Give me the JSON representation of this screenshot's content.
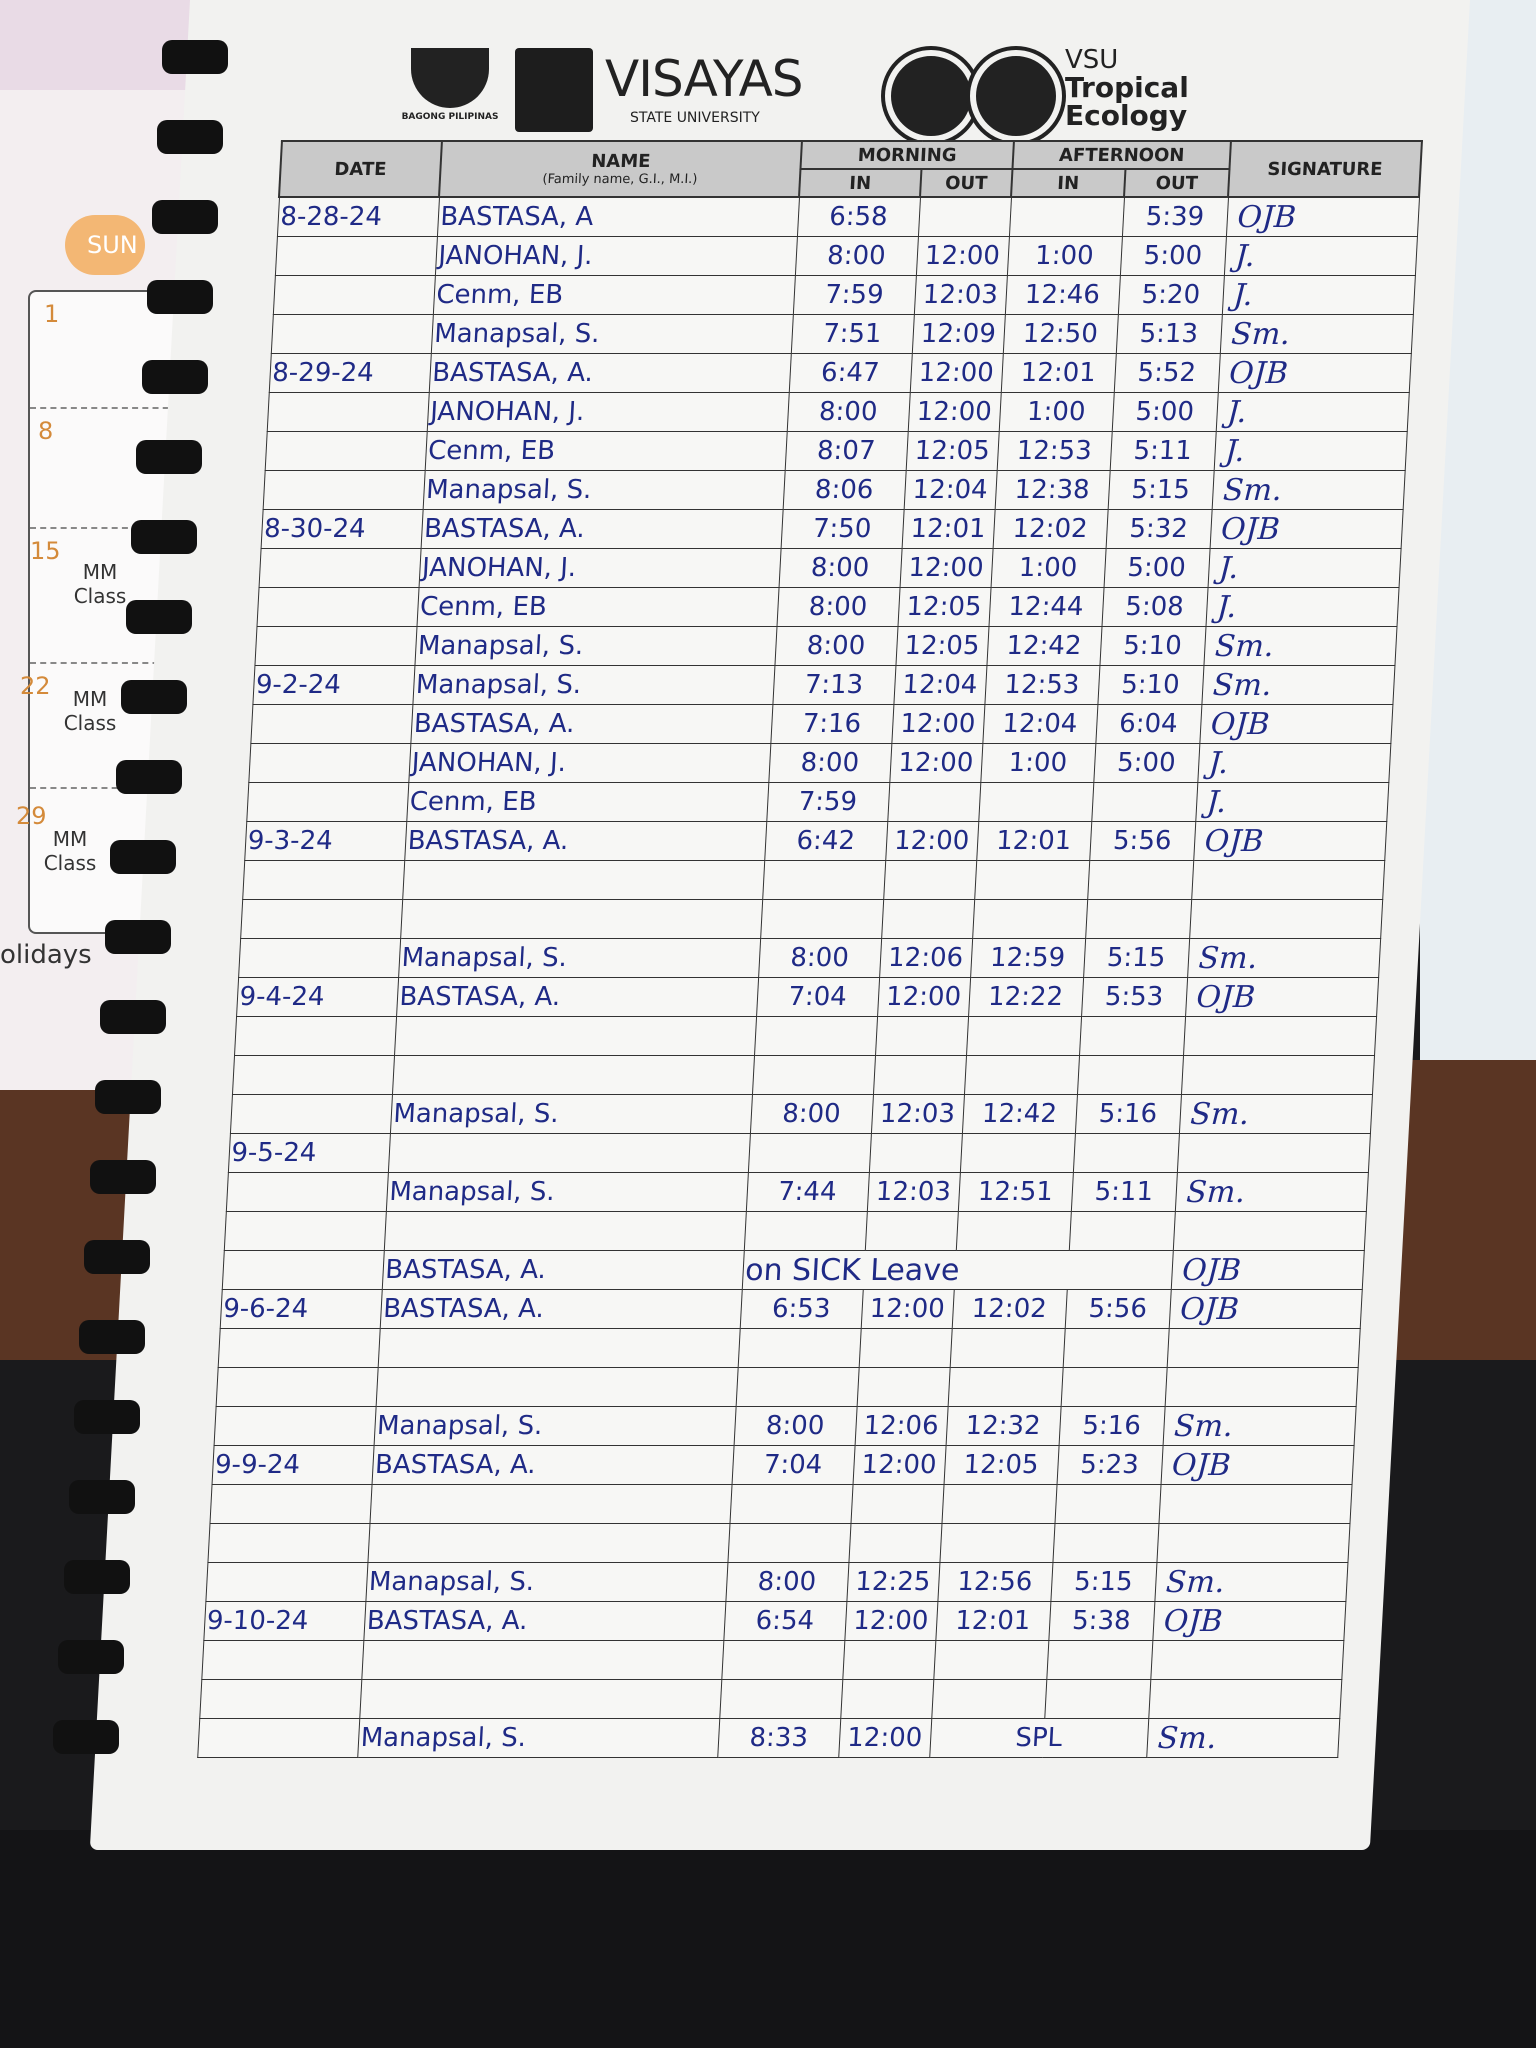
{
  "planner": {
    "day_label": "SUN",
    "dates": [
      "1",
      "8",
      "15",
      "22",
      "29"
    ],
    "notes": [
      "MM Class",
      "MM Class",
      "MM Class"
    ],
    "footer": "olidays"
  },
  "header": {
    "logo_bagong_pilipinas": "BAGONG PILIPINAS",
    "university_name": "VISAYAS",
    "university_sub": "STATE UNIVERSITY",
    "program_line1": "VSU",
    "program_line2": "Tropical",
    "program_line3": "Ecology"
  },
  "columns": {
    "date": "DATE",
    "name": "NAME",
    "name_sub": "(Family name, G.I., M.I.)",
    "morning": "MORNING",
    "afternoon": "AFTERNOON",
    "in": "IN",
    "out": "OUT",
    "signature": "SIGNATURE"
  },
  "rows": [
    {
      "date": "8-28-24",
      "name": "BASTASA, A",
      "am_in": "6:58",
      "am_out": "",
      "pm_in": "",
      "pm_out": "5:39",
      "signature": "OJB"
    },
    {
      "date": "",
      "name": "JANOHAN, J.",
      "am_in": "8:00",
      "am_out": "12:00",
      "pm_in": "1:00",
      "pm_out": "5:00",
      "signature": "J."
    },
    {
      "date": "",
      "name": "Cenm, EB",
      "am_in": "7:59",
      "am_out": "12:03",
      "pm_in": "12:46",
      "pm_out": "5:20",
      "signature": "J."
    },
    {
      "date": "",
      "name": "Manapsal, S.",
      "am_in": "7:51",
      "am_out": "12:09",
      "pm_in": "12:50",
      "pm_out": "5:13",
      "signature": "Sm."
    },
    {
      "date": "8-29-24",
      "name": "BASTASA, A.",
      "am_in": "6:47",
      "am_out": "12:00",
      "pm_in": "12:01",
      "pm_out": "5:52",
      "signature": "OJB"
    },
    {
      "date": "",
      "name": "JANOHAN, J.",
      "am_in": "8:00",
      "am_out": "12:00",
      "pm_in": "1:00",
      "pm_out": "5:00",
      "signature": "J."
    },
    {
      "date": "",
      "name": "Cenm, EB",
      "am_in": "8:07",
      "am_out": "12:05",
      "pm_in": "12:53",
      "pm_out": "5:11",
      "signature": "J."
    },
    {
      "date": "",
      "name": "Manapsal, S.",
      "am_in": "8:06",
      "am_out": "12:04",
      "pm_in": "12:38",
      "pm_out": "5:15",
      "signature": "Sm."
    },
    {
      "date": "8-30-24",
      "name": "BASTASA, A.",
      "am_in": "7:50",
      "am_out": "12:01",
      "pm_in": "12:02",
      "pm_out": "5:32",
      "signature": "OJB"
    },
    {
      "date": "",
      "name": "JANOHAN, J.",
      "am_in": "8:00",
      "am_out": "12:00",
      "pm_in": "1:00",
      "pm_out": "5:00",
      "signature": "J."
    },
    {
      "date": "",
      "name": "Cenm, EB",
      "am_in": "8:00",
      "am_out": "12:05",
      "pm_in": "12:44",
      "pm_out": "5:08",
      "signature": "J."
    },
    {
      "date": "",
      "name": "Manapsal, S.",
      "am_in": "8:00",
      "am_out": "12:05",
      "pm_in": "12:42",
      "pm_out": "5:10",
      "signature": "Sm."
    },
    {
      "date": "9-2-24",
      "name": "Manapsal, S.",
      "am_in": "7:13",
      "am_out": "12:04",
      "pm_in": "12:53",
      "pm_out": "5:10",
      "signature": "Sm."
    },
    {
      "date": "",
      "name": "BASTASA, A.",
      "am_in": "7:16",
      "am_out": "12:00",
      "pm_in": "12:04",
      "pm_out": "6:04",
      "signature": "OJB"
    },
    {
      "date": "",
      "name": "JANOHAN, J.",
      "am_in": "8:00",
      "am_out": "12:00",
      "pm_in": "1:00",
      "pm_out": "5:00",
      "signature": "J."
    },
    {
      "date": "",
      "name": "Cenm, EB",
      "am_in": "7:59",
      "am_out": "",
      "pm_in": "",
      "pm_out": "",
      "signature": "J."
    },
    {
      "date": "9-3-24",
      "name": "BASTASA, A.",
      "am_in": "6:42",
      "am_out": "12:00",
      "pm_in": "12:01",
      "pm_out": "5:56",
      "signature": "OJB"
    },
    {
      "date": "",
      "name": "",
      "am_in": "",
      "am_out": "",
      "pm_in": "",
      "pm_out": "",
      "signature": ""
    },
    {
      "date": "",
      "name": "",
      "am_in": "",
      "am_out": "",
      "pm_in": "",
      "pm_out": "",
      "signature": ""
    },
    {
      "date": "",
      "name": "Manapsal, S.",
      "am_in": "8:00",
      "am_out": "12:06",
      "pm_in": "12:59",
      "pm_out": "5:15",
      "signature": "Sm."
    },
    {
      "date": "9-4-24",
      "name": "BASTASA, A.",
      "am_in": "7:04",
      "am_out": "12:00",
      "pm_in": "12:22",
      "pm_out": "5:53",
      "signature": "OJB"
    },
    {
      "date": "",
      "name": "",
      "am_in": "",
      "am_out": "",
      "pm_in": "",
      "pm_out": "",
      "signature": ""
    },
    {
      "date": "",
      "name": "",
      "am_in": "",
      "am_out": "",
      "pm_in": "",
      "pm_out": "",
      "signature": ""
    },
    {
      "date": "",
      "name": "Manapsal, S.",
      "am_in": "8:00",
      "am_out": "12:03",
      "pm_in": "12:42",
      "pm_out": "5:16",
      "signature": "Sm."
    },
    {
      "date": "9-5-24",
      "name": "",
      "am_in": "",
      "am_out": "",
      "pm_in": "",
      "pm_out": "",
      "signature": ""
    },
    {
      "date": "",
      "name": "Manapsal, S.",
      "am_in": "7:44",
      "am_out": "12:03",
      "pm_in": "12:51",
      "pm_out": "5:11",
      "signature": "Sm."
    },
    {
      "date": "",
      "name": "",
      "am_in": "",
      "am_out": "",
      "pm_in": "",
      "pm_out": "",
      "signature": ""
    },
    {
      "date": "",
      "name": "BASTASA, A.",
      "note": "on SICK Leave",
      "signature": "OJB"
    },
    {
      "date": "9-6-24",
      "name": "BASTASA, A.",
      "am_in": "6:53",
      "am_out": "12:00",
      "pm_in": "12:02",
      "pm_out": "5:56",
      "signature": "OJB"
    },
    {
      "date": "",
      "name": "",
      "am_in": "",
      "am_out": "",
      "pm_in": "",
      "pm_out": "",
      "signature": ""
    },
    {
      "date": "",
      "name": "",
      "am_in": "",
      "am_out": "",
      "pm_in": "",
      "pm_out": "",
      "signature": ""
    },
    {
      "date": "",
      "name": "Manapsal, S.",
      "am_in": "8:00",
      "am_out": "12:06",
      "pm_in": "12:32",
      "pm_out": "5:16",
      "signature": "Sm."
    },
    {
      "date": "9-9-24",
      "name": "BASTASA, A.",
      "am_in": "7:04",
      "am_out": "12:00",
      "pm_in": "12:05",
      "pm_out": "5:23",
      "signature": "OJB"
    },
    {
      "date": "",
      "name": "",
      "am_in": "",
      "am_out": "",
      "pm_in": "",
      "pm_out": "",
      "signature": ""
    },
    {
      "date": "",
      "name": "",
      "am_in": "",
      "am_out": "",
      "pm_in": "",
      "pm_out": "",
      "signature": ""
    },
    {
      "date": "",
      "name": "Manapsal, S.",
      "am_in": "8:00",
      "am_out": "12:25",
      "pm_in": "12:56",
      "pm_out": "5:15",
      "signature": "Sm."
    },
    {
      "date": "9-10-24",
      "name": "BASTASA, A.",
      "am_in": "6:54",
      "am_out": "12:00",
      "pm_in": "12:01",
      "pm_out": "5:38",
      "signature": "OJB"
    },
    {
      "date": "",
      "name": "",
      "am_in": "",
      "am_out": "",
      "pm_in": "",
      "pm_out": "",
      "signature": ""
    },
    {
      "date": "",
      "name": "",
      "am_in": "",
      "am_out": "",
      "pm_in": "",
      "pm_out": "",
      "signature": ""
    },
    {
      "date": "",
      "name": "Manapsal, S.",
      "am_in": "8:33",
      "am_out": "12:00",
      "pm_note": "SPL",
      "signature": "Sm."
    }
  ]
}
